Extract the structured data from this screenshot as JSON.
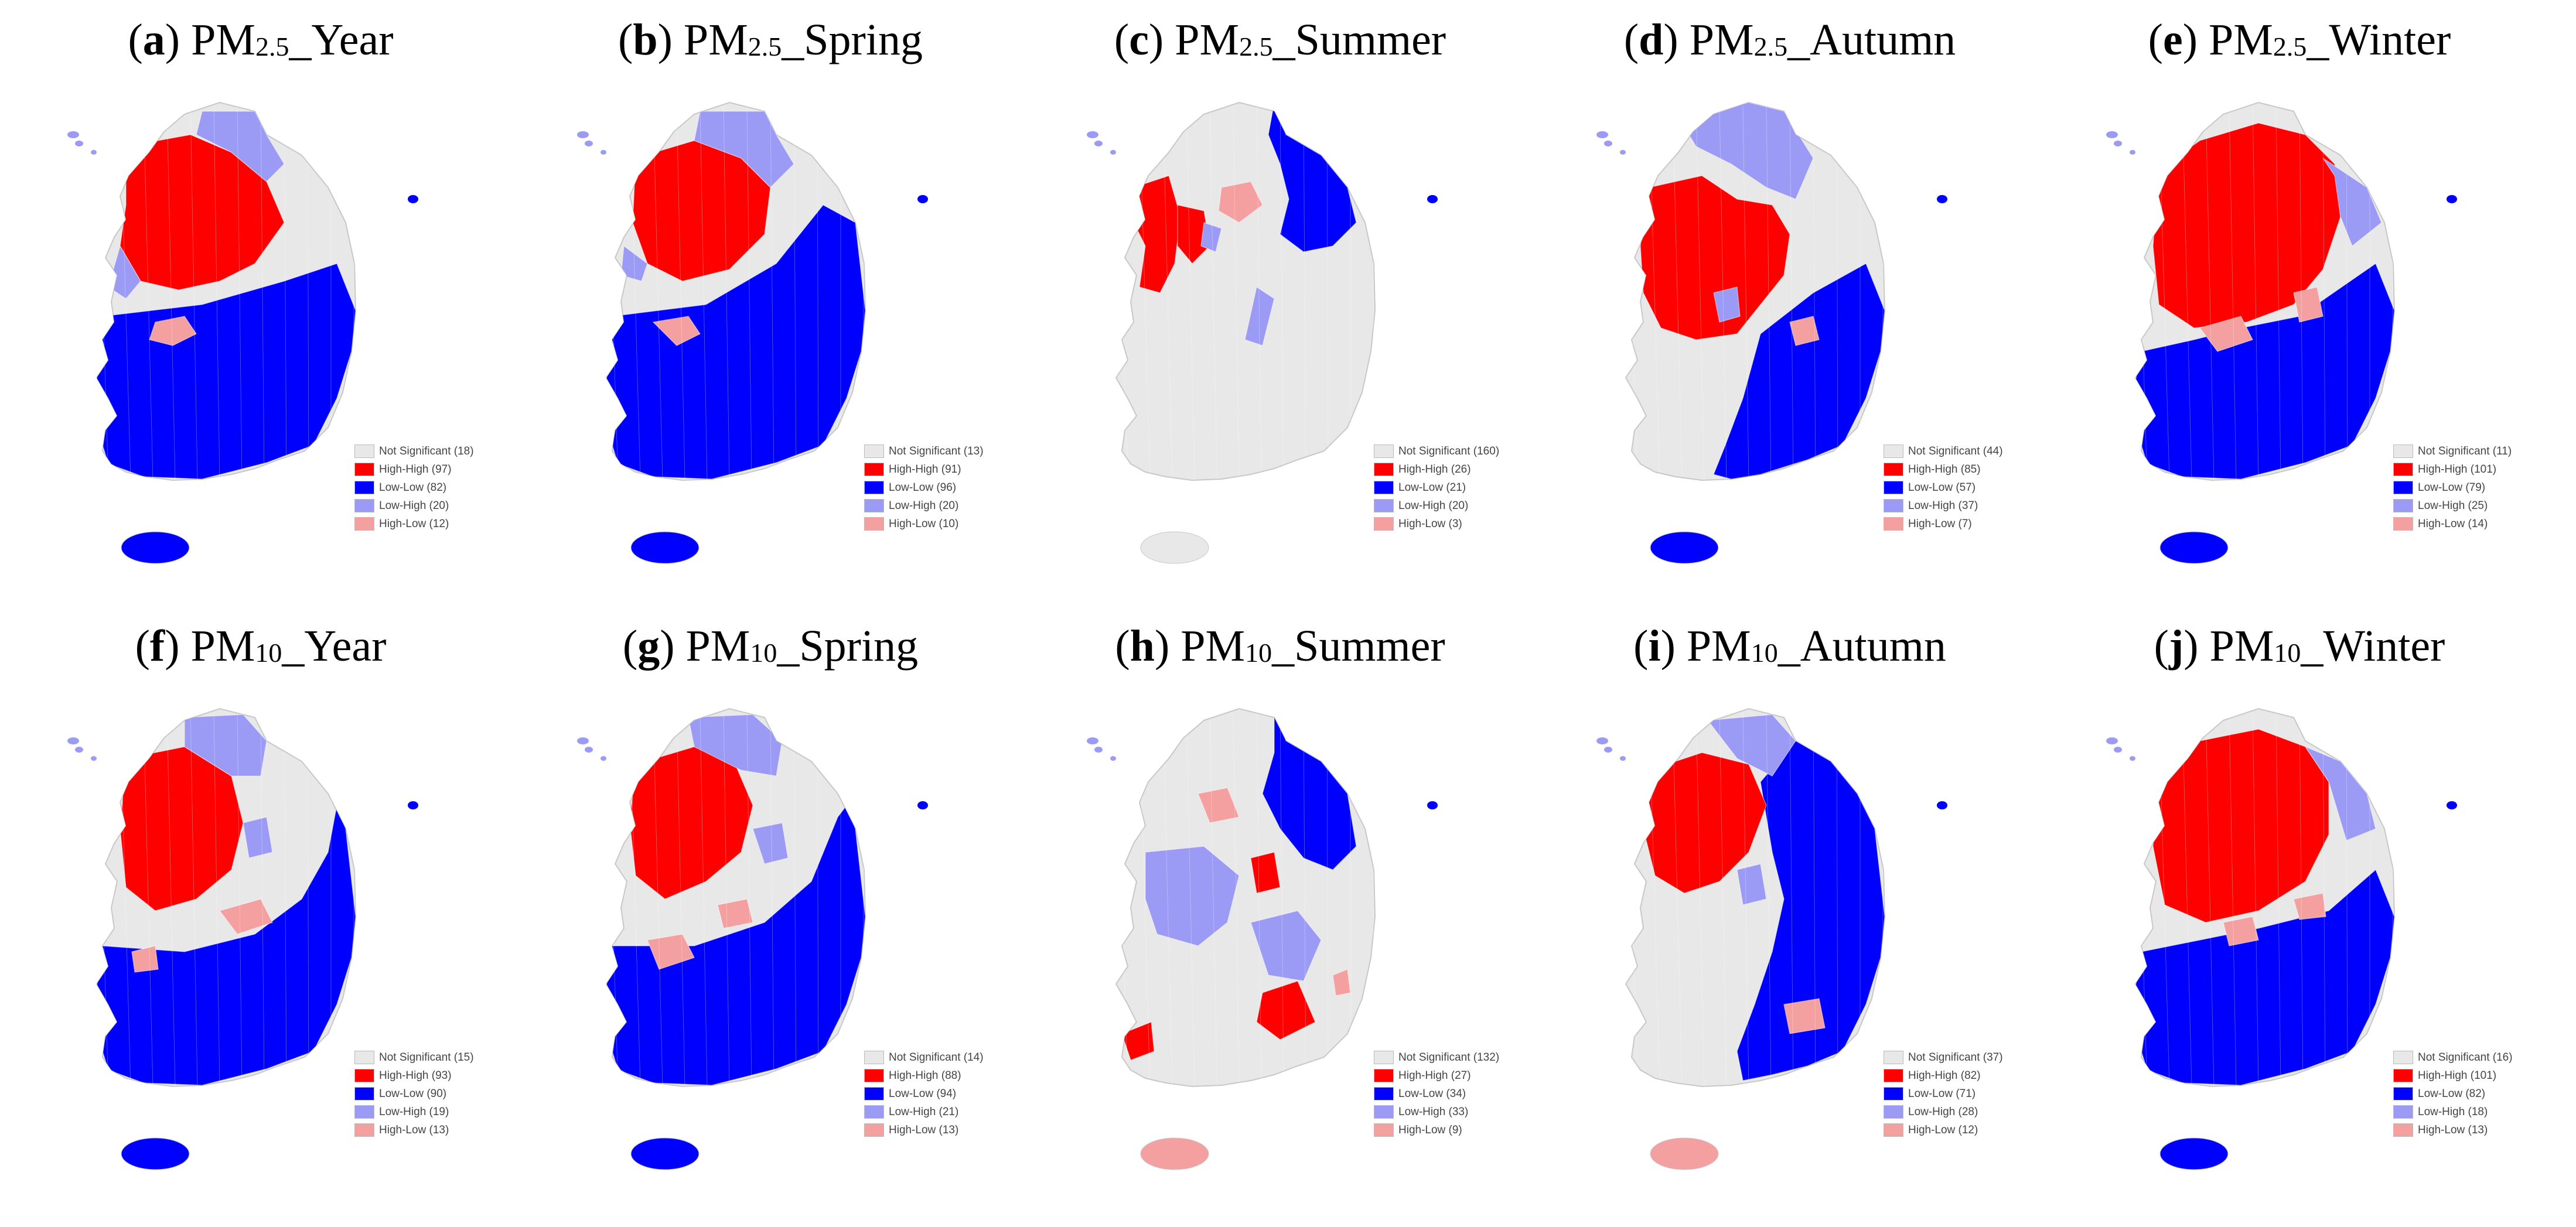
{
  "colors": {
    "not_significant": "#e8e8e8",
    "high_high": "#ff0000",
    "low_low": "#0000ff",
    "low_high": "#9b9bf5",
    "high_low": "#f5a0a0",
    "border": "#c8c8c8"
  },
  "panels": [
    {
      "label": "a",
      "pm": "PM",
      "pm_sub": "2.5",
      "suffix": "_Year",
      "legend": [
        {
          "key": "not_significant",
          "text": "Not Significant (18)"
        },
        {
          "key": "high_high",
          "text": "High-High (97)"
        },
        {
          "key": "low_low",
          "text": "Low-Low (82)"
        },
        {
          "key": "low_high",
          "text": "Low-High (20)"
        },
        {
          "key": "high_low",
          "text": "High-Low (12)"
        }
      ]
    },
    {
      "label": "b",
      "pm": "PM",
      "pm_sub": "2.5",
      "suffix": "_Spring",
      "legend": [
        {
          "key": "not_significant",
          "text": "Not Significant (13)"
        },
        {
          "key": "high_high",
          "text": "High-High (91)"
        },
        {
          "key": "low_low",
          "text": "Low-Low (96)"
        },
        {
          "key": "low_high",
          "text": "Low-High (20)"
        },
        {
          "key": "high_low",
          "text": "High-Low (10)"
        }
      ]
    },
    {
      "label": "c",
      "pm": "PM",
      "pm_sub": "2.5",
      "suffix": "_Summer",
      "legend": [
        {
          "key": "not_significant",
          "text": "Not Significant (160)"
        },
        {
          "key": "high_high",
          "text": "High-High (26)"
        },
        {
          "key": "low_low",
          "text": "Low-Low (21)"
        },
        {
          "key": "low_high",
          "text": "Low-High (20)"
        },
        {
          "key": "high_low",
          "text": "High-Low (3)"
        }
      ]
    },
    {
      "label": "d",
      "pm": "PM",
      "pm_sub": "2.5",
      "suffix": "_Autumn",
      "legend": [
        {
          "key": "not_significant",
          "text": "Not Significant (44)"
        },
        {
          "key": "high_high",
          "text": "High-High (85)"
        },
        {
          "key": "low_low",
          "text": "Low-Low (57)"
        },
        {
          "key": "low_high",
          "text": "Low-High (37)"
        },
        {
          "key": "high_low",
          "text": "High-Low (7)"
        }
      ]
    },
    {
      "label": "e",
      "pm": "PM",
      "pm_sub": "2.5",
      "suffix": "_Winter",
      "legend": [
        {
          "key": "not_significant",
          "text": "Not Significant (11)"
        },
        {
          "key": "high_high",
          "text": "High-High (101)"
        },
        {
          "key": "low_low",
          "text": "Low-Low (79)"
        },
        {
          "key": "low_high",
          "text": "Low-High (25)"
        },
        {
          "key": "high_low",
          "text": "High-Low (14)"
        }
      ]
    },
    {
      "label": "f",
      "pm": "PM",
      "pm_sub": "10",
      "suffix": "_Year",
      "legend": [
        {
          "key": "not_significant",
          "text": "Not Significant (15)"
        },
        {
          "key": "high_high",
          "text": "High-High (93)"
        },
        {
          "key": "low_low",
          "text": "Low-Low (90)"
        },
        {
          "key": "low_high",
          "text": "Low-High (19)"
        },
        {
          "key": "high_low",
          "text": "High-Low (13)"
        }
      ]
    },
    {
      "label": "g",
      "pm": "PM",
      "pm_sub": "10",
      "suffix": "_Spring",
      "legend": [
        {
          "key": "not_significant",
          "text": "Not Significant (14)"
        },
        {
          "key": "high_high",
          "text": "High-High (88)"
        },
        {
          "key": "low_low",
          "text": "Low-Low (94)"
        },
        {
          "key": "low_high",
          "text": "Low-High (21)"
        },
        {
          "key": "high_low",
          "text": "High-Low (13)"
        }
      ]
    },
    {
      "label": "h",
      "pm": "PM",
      "pm_sub": "10",
      "suffix": "_Summer",
      "legend": [
        {
          "key": "not_significant",
          "text": "Not Significant (132)"
        },
        {
          "key": "high_high",
          "text": "High-High (27)"
        },
        {
          "key": "low_low",
          "text": "Low-Low (34)"
        },
        {
          "key": "low_high",
          "text": "Low-High (33)"
        },
        {
          "key": "high_low",
          "text": "High-Low (9)"
        }
      ]
    },
    {
      "label": "i",
      "pm": "PM",
      "pm_sub": "10",
      "suffix": "_Autumn",
      "legend": [
        {
          "key": "not_significant",
          "text": "Not Significant (37)"
        },
        {
          "key": "high_high",
          "text": "High-High (82)"
        },
        {
          "key": "low_low",
          "text": "Low-Low (71)"
        },
        {
          "key": "low_high",
          "text": "Low-High (28)"
        },
        {
          "key": "high_low",
          "text": "High-Low (12)"
        }
      ]
    },
    {
      "label": "j",
      "pm": "PM",
      "pm_sub": "10",
      "suffix": "_Winter",
      "legend": [
        {
          "key": "not_significant",
          "text": "Not Significant (16)"
        },
        {
          "key": "high_high",
          "text": "High-High (101)"
        },
        {
          "key": "low_low",
          "text": "Low-Low (82)"
        },
        {
          "key": "low_high",
          "text": "Low-High (18)"
        },
        {
          "key": "high_low",
          "text": "High-Low (13)"
        }
      ]
    }
  ]
}
